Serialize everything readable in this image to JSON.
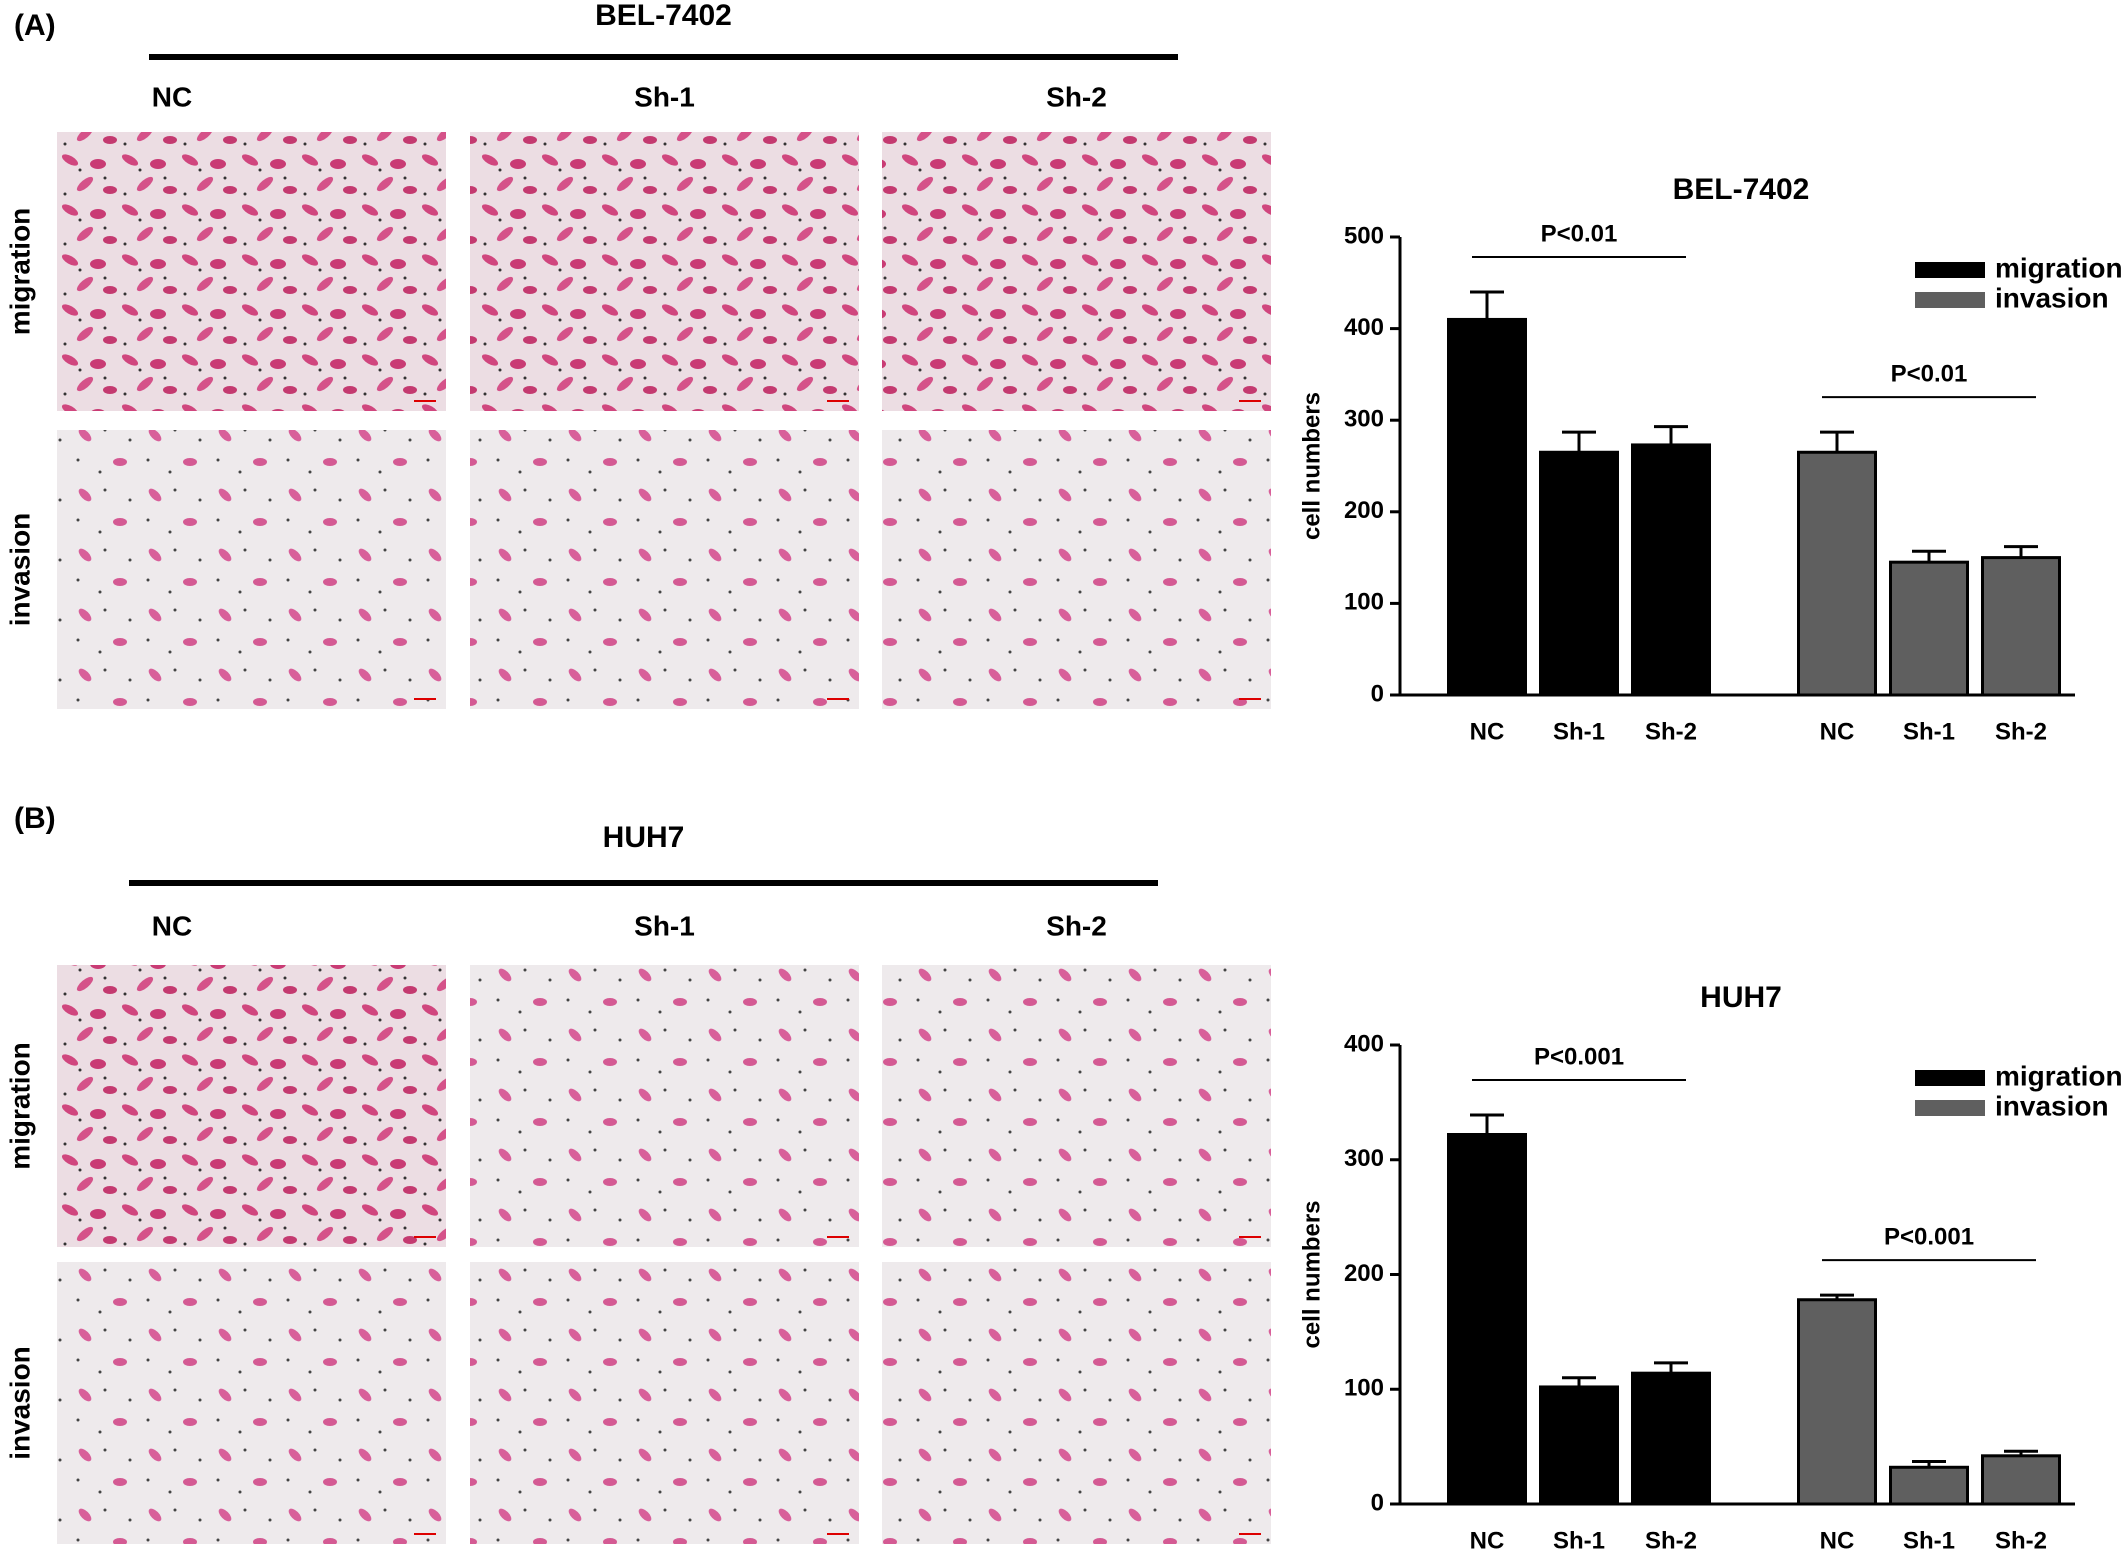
{
  "figure": [
    {
      "label": "(A)",
      "title": "BEL-7402",
      "columns": [
        "NC",
        "Sh-1",
        "Sh-2"
      ],
      "rows": [
        "migration",
        "invasion"
      ]
    },
    {
      "label": "(B)",
      "title": "HUH7",
      "columns": [
        "NC",
        "Sh-1",
        "Sh-2"
      ],
      "rows": [
        "migration",
        "invasion"
      ]
    }
  ],
  "chart_data": [
    {
      "type": "bar",
      "title": "BEL-7402",
      "y_label": "cell numbers",
      "categories": [
        "NC",
        "Sh-1",
        "Sh-2"
      ],
      "series": [
        {
          "name": "migration",
          "color": "#000000",
          "values": [
            410,
            265,
            273
          ],
          "errors": [
            30,
            22,
            20
          ]
        },
        {
          "name": "invasion",
          "color": "#5f5f5f",
          "values": [
            265,
            145,
            150
          ],
          "errors": [
            22,
            12,
            12
          ]
        }
      ],
      "annotations": [
        "P<0.01",
        "P<0.01"
      ],
      "ylim": [
        0,
        500
      ],
      "yticks": [
        0,
        100,
        200,
        300,
        400,
        500
      ],
      "legend": "top-right"
    },
    {
      "type": "bar",
      "title": "HUH7",
      "y_label": "cell numbers",
      "categories": [
        "NC",
        "Sh-1",
        "Sh-2"
      ],
      "series": [
        {
          "name": "migration",
          "color": "#000000",
          "values": [
            322,
            102,
            114
          ],
          "errors": [
            17,
            8,
            9
          ]
        },
        {
          "name": "invasion",
          "color": "#5f5f5f",
          "values": [
            178,
            32,
            42
          ],
          "errors": [
            4,
            5,
            4
          ]
        }
      ],
      "annotations": [
        "P<0.001",
        "P<0.001"
      ],
      "ylim": [
        0,
        400
      ],
      "yticks": [
        0,
        100,
        200,
        300,
        400
      ],
      "legend": "top-right"
    }
  ]
}
